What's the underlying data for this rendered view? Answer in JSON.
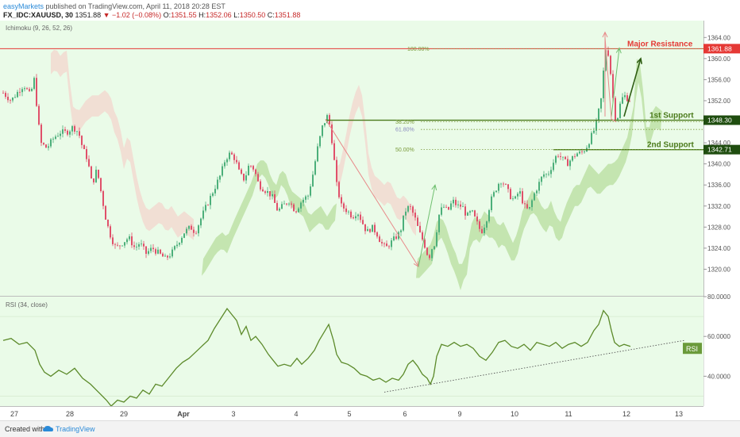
{
  "header": {
    "publisher": "easyMarkets",
    "published_text": "published on TradingView.com, April 11, 2018 20:28 EST",
    "symbol": "FX_IDC:XAUUSD, 30",
    "last": "1351.88",
    "change": "▼ −1.02 (−0.08%)",
    "ohlc_o_label": "O:",
    "ohlc_o": "1351.55",
    "ohlc_h_label": "H:",
    "ohlc_h": "1352.06",
    "ohlc_l_label": "L:",
    "ohlc_l": "1350.50",
    "ohlc_c_label": "C:",
    "ohlc_c": "1351.88"
  },
  "footer": {
    "created_with": "Created with",
    "brand": "TradingView"
  },
  "colors": {
    "background": "#eafbe8",
    "up_candle": "#4caf7a",
    "down_candle": "#e0506a",
    "resistance": "#e53935",
    "support": "#4a7a1a",
    "rsi_line": "#5c8a2a",
    "cloud_green": "#bde0a6",
    "cloud_red": "#f2d9d0",
    "fib": "#7a9a3a"
  },
  "chart_data": [
    {
      "type": "candlestick",
      "indicator_label": "Ichimoku (9, 26, 52, 26)",
      "ylim": [
        1316,
        1366
      ],
      "y_ticks": [
        "1364.00",
        "1360.00",
        "1356.00",
        "1352.00",
        "1348.00",
        "1344.00",
        "1340.00",
        "1336.00",
        "1332.00",
        "1328.00",
        "1324.00",
        "1320.00"
      ],
      "x_ticks": [
        "27",
        "28",
        "29",
        "Apr",
        "3",
        "4",
        "5",
        "6",
        "9",
        "10",
        "11",
        "12",
        "13"
      ],
      "price_path": [
        [
          0,
          1353.5
        ],
        [
          10,
          1352
        ],
        [
          20,
          1354
        ],
        [
          26,
          1355
        ],
        [
          34,
          1353
        ],
        [
          39,
          1356
        ],
        [
          43,
          1350
        ],
        [
          47,
          1344
        ],
        [
          55,
          1343
        ],
        [
          64,
          1345
        ],
        [
          72,
          1346
        ],
        [
          80,
          1346
        ],
        [
          88,
          1347
        ],
        [
          95,
          1346
        ],
        [
          100,
          1343
        ],
        [
          106,
          1341
        ],
        [
          112,
          1336
        ],
        [
          118,
          1339
        ],
        [
          124,
          1334
        ],
        [
          130,
          1329
        ],
        [
          136,
          1326
        ],
        [
          142,
          1324
        ],
        [
          150,
          1325
        ],
        [
          158,
          1326
        ],
        [
          166,
          1324
        ],
        [
          172,
          1325
        ],
        [
          180,
          1323
        ],
        [
          188,
          1324
        ],
        [
          196,
          1323
        ],
        [
          204,
          1322
        ],
        [
          212,
          1323
        ],
        [
          220,
          1325
        ],
        [
          228,
          1327
        ],
        [
          236,
          1328
        ],
        [
          242,
          1327
        ],
        [
          250,
          1330
        ],
        [
          256,
          1332
        ],
        [
          262,
          1334
        ],
        [
          268,
          1336
        ],
        [
          274,
          1338
        ],
        [
          280,
          1341
        ],
        [
          286,
          1342
        ],
        [
          292,
          1341
        ],
        [
          298,
          1338
        ],
        [
          304,
          1337
        ],
        [
          310,
          1340
        ],
        [
          316,
          1339
        ],
        [
          322,
          1336
        ],
        [
          330,
          1335
        ],
        [
          338,
          1334
        ],
        [
          346,
          1331
        ],
        [
          352,
          1332
        ],
        [
          360,
          1333
        ],
        [
          368,
          1331
        ],
        [
          376,
          1333
        ],
        [
          384,
          1334
        ],
        [
          390,
          1338
        ],
        [
          396,
          1343
        ],
        [
          402,
          1347
        ],
        [
          408,
          1349
        ],
        [
          412,
          1347
        ],
        [
          416,
          1342
        ],
        [
          420,
          1336
        ],
        [
          426,
          1332
        ],
        [
          434,
          1331
        ],
        [
          440,
          1330
        ],
        [
          446,
          1331
        ],
        [
          452,
          1329
        ],
        [
          458,
          1327
        ],
        [
          464,
          1328
        ],
        [
          470,
          1327
        ],
        [
          476,
          1325
        ],
        [
          482,
          1324
        ],
        [
          488,
          1325
        ],
        [
          494,
          1326
        ],
        [
          500,
          1327
        ],
        [
          506,
          1331
        ],
        [
          512,
          1332
        ],
        [
          518,
          1330
        ],
        [
          524,
          1327
        ],
        [
          530,
          1325
        ],
        [
          536,
          1322
        ],
        [
          540,
          1324
        ],
        [
          544,
          1325
        ],
        [
          548,
          1330
        ],
        [
          554,
          1332
        ],
        [
          560,
          1331
        ],
        [
          566,
          1333
        ],
        [
          572,
          1332
        ],
        [
          578,
          1332
        ],
        [
          584,
          1330
        ],
        [
          590,
          1331
        ],
        [
          596,
          1329
        ],
        [
          602,
          1327
        ],
        [
          608,
          1329
        ],
        [
          614,
          1333
        ],
        [
          620,
          1335
        ],
        [
          626,
          1337
        ],
        [
          632,
          1336
        ],
        [
          638,
          1334
        ],
        [
          644,
          1333
        ],
        [
          650,
          1335
        ],
        [
          656,
          1332
        ],
        [
          662,
          1331
        ],
        [
          668,
          1334
        ],
        [
          674,
          1336
        ],
        [
          680,
          1338
        ],
        [
          686,
          1338
        ],
        [
          692,
          1340
        ],
        [
          698,
          1342
        ],
        [
          704,
          1341
        ],
        [
          710,
          1340
        ],
        [
          716,
          1341
        ],
        [
          722,
          1342
        ],
        [
          728,
          1342
        ],
        [
          734,
          1343
        ],
        [
          740,
          1345
        ],
        [
          746,
          1347
        ],
        [
          750,
          1350
        ],
        [
          754,
          1353
        ],
        [
          758,
          1362
        ],
        [
          762,
          1361
        ],
        [
          766,
          1356
        ],
        [
          770,
          1349
        ],
        [
          774,
          1349
        ],
        [
          778,
          1352
        ],
        [
          782,
          1353
        ],
        [
          786,
          1352.5
        ],
        [
          790,
          1352
        ]
      ],
      "horizontal_levels": [
        {
          "label": "Major Resistance",
          "value": 1361.88,
          "tag": "1361.88"
        },
        {
          "label": "1st Support",
          "value": 1348.3,
          "tag": "1348.30"
        },
        {
          "label": "2nd Support",
          "value": 1342.71,
          "tag": "1342.71"
        }
      ],
      "fib_levels": [
        {
          "label": "100.00%",
          "value": 1361.88
        },
        {
          "label": "38.20%",
          "value": 1348.0
        },
        {
          "label": "61.80%",
          "value": 1347.3
        },
        {
          "label": "50.00%",
          "value": 1342.71
        }
      ]
    },
    {
      "type": "line",
      "indicator_label": "RSI (34, close)",
      "ylim": [
        25,
        80
      ],
      "y_ticks": [
        "80.0000",
        "60.0000",
        "40.0000"
      ],
      "badge": "RSI",
      "rsi_path": [
        [
          0,
          58
        ],
        [
          10,
          59
        ],
        [
          20,
          56
        ],
        [
          30,
          57
        ],
        [
          40,
          53
        ],
        [
          46,
          46
        ],
        [
          52,
          42
        ],
        [
          60,
          40
        ],
        [
          70,
          43
        ],
        [
          80,
          41
        ],
        [
          90,
          44
        ],
        [
          100,
          39
        ],
        [
          110,
          36
        ],
        [
          120,
          32
        ],
        [
          130,
          28
        ],
        [
          136,
          25
        ],
        [
          144,
          28
        ],
        [
          152,
          27
        ],
        [
          160,
          30
        ],
        [
          168,
          29
        ],
        [
          176,
          33
        ],
        [
          184,
          31
        ],
        [
          192,
          36
        ],
        [
          200,
          35
        ],
        [
          210,
          40
        ],
        [
          218,
          44
        ],
        [
          226,
          47
        ],
        [
          234,
          49
        ],
        [
          242,
          52
        ],
        [
          250,
          55
        ],
        [
          258,
          58
        ],
        [
          266,
          64
        ],
        [
          274,
          69
        ],
        [
          282,
          74
        ],
        [
          288,
          71
        ],
        [
          294,
          68
        ],
        [
          300,
          61
        ],
        [
          306,
          65
        ],
        [
          312,
          58
        ],
        [
          318,
          60
        ],
        [
          326,
          56
        ],
        [
          334,
          51
        ],
        [
          340,
          48
        ],
        [
          346,
          45
        ],
        [
          354,
          46
        ],
        [
          362,
          45
        ],
        [
          370,
          49
        ],
        [
          376,
          46
        ],
        [
          384,
          49
        ],
        [
          392,
          53
        ],
        [
          398,
          58
        ],
        [
          404,
          62
        ],
        [
          410,
          66
        ],
        [
          416,
          58
        ],
        [
          420,
          51
        ],
        [
          426,
          47
        ],
        [
          434,
          46
        ],
        [
          442,
          44
        ],
        [
          450,
          41
        ],
        [
          458,
          40
        ],
        [
          466,
          38
        ],
        [
          474,
          39
        ],
        [
          482,
          37
        ],
        [
          490,
          39
        ],
        [
          498,
          38
        ],
        [
          504,
          41
        ],
        [
          510,
          46
        ],
        [
          516,
          48
        ],
        [
          522,
          45
        ],
        [
          528,
          41
        ],
        [
          534,
          39
        ],
        [
          538,
          36
        ],
        [
          542,
          40
        ],
        [
          546,
          50
        ],
        [
          552,
          56
        ],
        [
          560,
          55
        ],
        [
          568,
          57
        ],
        [
          576,
          55
        ],
        [
          584,
          56
        ],
        [
          592,
          54
        ],
        [
          600,
          50
        ],
        [
          608,
          48
        ],
        [
          616,
          52
        ],
        [
          624,
          57
        ],
        [
          632,
          58
        ],
        [
          640,
          55
        ],
        [
          648,
          54
        ],
        [
          656,
          56
        ],
        [
          664,
          53
        ],
        [
          672,
          57
        ],
        [
          680,
          56
        ],
        [
          688,
          55
        ],
        [
          696,
          57
        ],
        [
          704,
          54
        ],
        [
          712,
          56
        ],
        [
          720,
          57
        ],
        [
          728,
          55
        ],
        [
          736,
          57
        ],
        [
          744,
          63
        ],
        [
          750,
          66
        ],
        [
          756,
          73
        ],
        [
          762,
          70
        ],
        [
          766,
          63
        ],
        [
          770,
          57
        ],
        [
          776,
          55
        ],
        [
          782,
          56
        ],
        [
          790,
          55
        ]
      ],
      "trendline": [
        [
          480,
          32
        ],
        [
          858,
          58
        ]
      ]
    }
  ]
}
